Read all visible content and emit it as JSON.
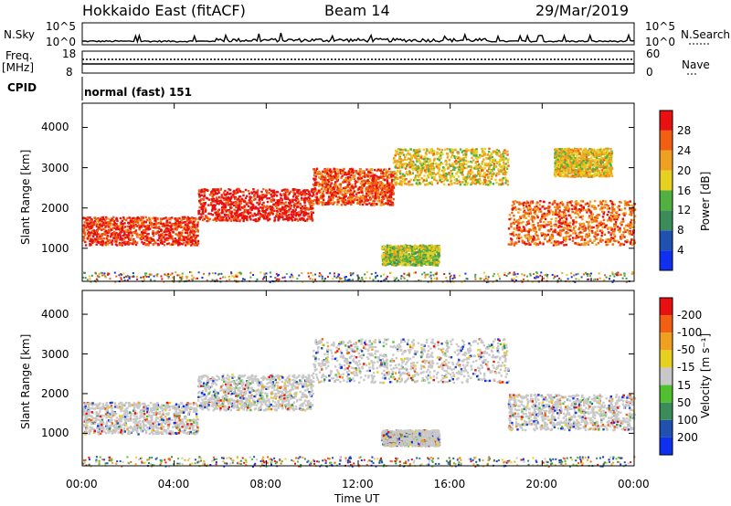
{
  "header": {
    "title": "Hokkaido East (fitACF)",
    "beam": "Beam 14",
    "date": "29/Mar/2019"
  },
  "status_panels": {
    "nsky_label": "N.Sky",
    "nsky_ticks": [
      "10^5",
      "10^0"
    ],
    "nsearch_label": "N.Search",
    "nsearch_ticks": [
      "10^5",
      "10^0"
    ],
    "freq_label_1": "Freq.",
    "freq_label_2": "[MHz]",
    "freq_ticks": [
      "18",
      "8"
    ],
    "nave_label": "Nave",
    "nave_ticks": [
      "60",
      "0"
    ],
    "cpid_label": "CPID",
    "cpid_value": "normal (fast) 151"
  },
  "chart_data": [
    {
      "type": "heatmap",
      "panel": "power",
      "ylabel": "Slant Range [km]",
      "yticks": [
        1000,
        2000,
        3000,
        4000
      ],
      "ylim": [
        180,
        4600
      ],
      "colorbar": {
        "label": "Power [dB]",
        "ticks": [
          "4",
          "8",
          "12",
          "16",
          "20",
          "24",
          "28"
        ],
        "colors": [
          "#1030f0",
          "#2050b0",
          "#3c8c5a",
          "#50b040",
          "#e8d020",
          "#f0a020",
          "#f06010",
          "#e81010"
        ]
      },
      "bands": [
        {
          "x": [
            0.0,
            5.0
          ],
          "y": [
            1100,
            1800
          ],
          "level": 0.9
        },
        {
          "x": [
            5.0,
            10.0
          ],
          "y": [
            1700,
            2500
          ],
          "level": 0.95
        },
        {
          "x": [
            10.0,
            13.5
          ],
          "y": [
            2100,
            3000
          ],
          "level": 0.85
        },
        {
          "x": [
            13.5,
            18.5
          ],
          "y": [
            2600,
            3500
          ],
          "level": 0.6
        },
        {
          "x": [
            18.5,
            24.0
          ],
          "y": [
            1100,
            2200
          ],
          "level": 0.8
        },
        {
          "x": [
            13.0,
            15.5
          ],
          "y": [
            600,
            1100
          ],
          "level": 0.5
        },
        {
          "x": [
            20.5,
            23.0
          ],
          "y": [
            2800,
            3500
          ],
          "level": 0.6
        }
      ]
    },
    {
      "type": "heatmap",
      "panel": "velocity",
      "xlabel": "Time UT",
      "xticks": [
        "00:00",
        "04:00",
        "08:00",
        "12:00",
        "16:00",
        "20:00",
        "00:00"
      ],
      "ylabel": "Slant Range [km]",
      "yticks": [
        1000,
        2000,
        3000,
        4000
      ],
      "ylim": [
        180,
        4600
      ],
      "colorbar": {
        "label": "Velocity [m s⁻¹]",
        "ticks": [
          "200",
          "100",
          "50",
          "15",
          "-15",
          "-50",
          "-100",
          "-200"
        ],
        "colors": [
          "#1030f0",
          "#2050b0",
          "#3c8c5a",
          "#50c030",
          "#c8c8c8",
          "#e8d020",
          "#f0a020",
          "#f06010",
          "#e81010"
        ]
      },
      "bands": [
        {
          "x": [
            0.0,
            5.0
          ],
          "y": [
            1000,
            1800
          ],
          "level": 0.5
        },
        {
          "x": [
            5.0,
            10.0
          ],
          "y": [
            1600,
            2500
          ],
          "level": 0.5
        },
        {
          "x": [
            10.0,
            18.5
          ],
          "y": [
            2300,
            3400
          ],
          "level": 0.5
        },
        {
          "x": [
            18.5,
            24.0
          ],
          "y": [
            1100,
            2000
          ],
          "level": 0.5
        },
        {
          "x": [
            13.0,
            15.5
          ],
          "y": [
            700,
            1100
          ],
          "level": 0.3
        }
      ]
    }
  ]
}
